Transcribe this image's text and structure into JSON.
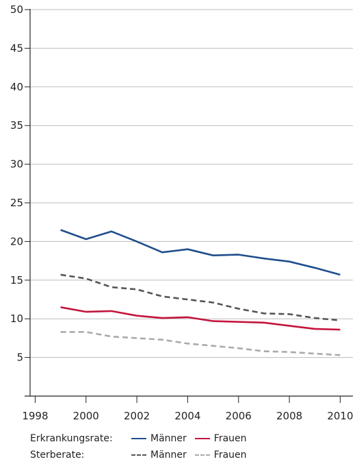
{
  "chart_data": {
    "type": "line",
    "title": "",
    "xlabel": "",
    "ylabel": "",
    "ylim": [
      0,
      50
    ],
    "xlim": [
      1997.8,
      2010.5
    ],
    "yticks": [
      5,
      10,
      15,
      20,
      25,
      30,
      35,
      40,
      45,
      50
    ],
    "xticks": [
      1998,
      2000,
      2002,
      2004,
      2006,
      2008,
      2010
    ],
    "ytick_labels": [
      "5",
      "10",
      "15",
      "20",
      "25",
      "30",
      "35",
      "40",
      "45",
      "50"
    ],
    "xtick_labels": [
      "1998",
      "2000",
      "2002",
      "2004",
      "2006",
      "2008",
      "2010"
    ],
    "grid": "horizontal",
    "x": [
      1999,
      2000,
      2001,
      2002,
      2003,
      2004,
      2005,
      2006,
      2007,
      2008,
      2009,
      2010
    ],
    "series": [
      {
        "group": "Erkrankungsrate",
        "name": "Männer",
        "color": "#1f4e8c",
        "style": "solid",
        "values": [
          21.5,
          20.3,
          21.3,
          20.0,
          18.6,
          19.0,
          18.2,
          18.3,
          17.8,
          17.4,
          16.6,
          15.7
        ]
      },
      {
        "group": "Erkrankungsrate",
        "name": "Frauen",
        "color": "#c4143c",
        "style": "solid",
        "values": [
          11.5,
          10.9,
          11.0,
          10.4,
          10.1,
          10.2,
          9.7,
          9.6,
          9.5,
          9.1,
          8.7,
          8.6
        ]
      },
      {
        "group": "Sterberate",
        "name": "Männer",
        "color": "#555555",
        "style": "dashed",
        "values": [
          15.7,
          15.2,
          14.1,
          13.8,
          12.9,
          12.5,
          12.1,
          11.3,
          10.7,
          10.6,
          10.1,
          9.8
        ]
      },
      {
        "group": "Sterberate",
        "name": "Frauen",
        "color": "#aaaaaa",
        "style": "dashed",
        "values": [
          8.3,
          8.3,
          7.7,
          7.5,
          7.3,
          6.8,
          6.5,
          6.2,
          5.8,
          5.7,
          5.5,
          5.3
        ]
      }
    ],
    "legend": {
      "placement": "bottom",
      "rows": [
        {
          "label": "Erkrankungsrate:",
          "items": [
            {
              "series": 0,
              "label": "Männer"
            },
            {
              "series": 1,
              "label": "Frauen"
            }
          ]
        },
        {
          "label": "Sterberate:",
          "items": [
            {
              "series": 2,
              "label": "Männer"
            },
            {
              "series": 3,
              "label": "Frauen"
            }
          ]
        }
      ]
    }
  }
}
